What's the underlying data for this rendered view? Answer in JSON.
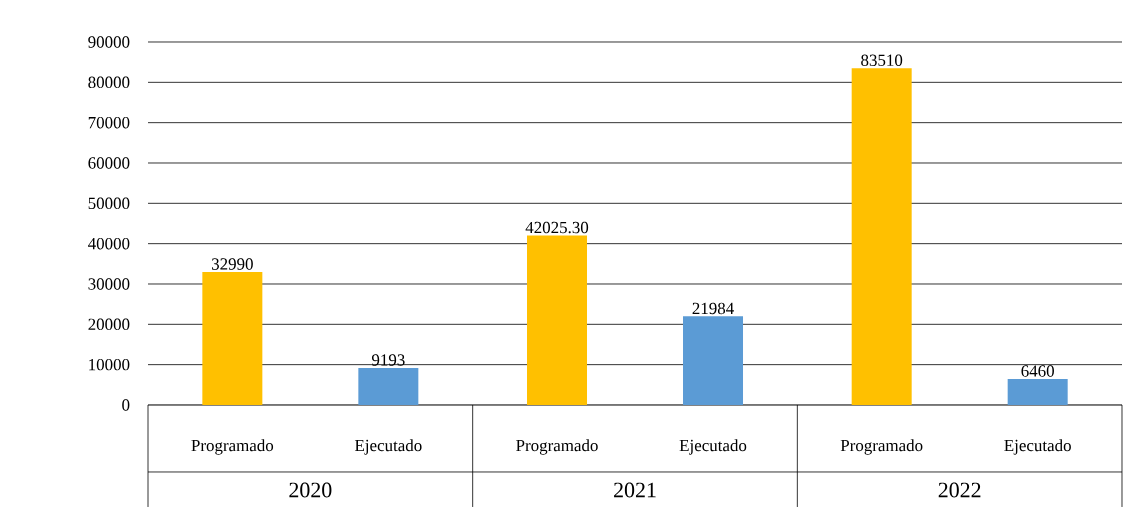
{
  "chart_data": {
    "type": "bar",
    "categories": [
      "2020",
      "2021",
      "2022"
    ],
    "series": [
      {
        "name": "Programado",
        "color": "#ffc000",
        "values": [
          32990,
          42025.3,
          83510
        ],
        "value_labels": [
          "32990",
          "42025.30",
          "83510"
        ]
      },
      {
        "name": "Ejecutado",
        "color": "#5b9bd5",
        "values": [
          9193,
          21984,
          6460
        ],
        "value_labels": [
          "9193",
          "21984",
          "6460"
        ]
      }
    ],
    "ylim": [
      0,
      90000
    ],
    "yticks": [
      0,
      10000,
      20000,
      30000,
      40000,
      50000,
      60000,
      70000,
      80000,
      90000
    ],
    "grid": "y"
  }
}
